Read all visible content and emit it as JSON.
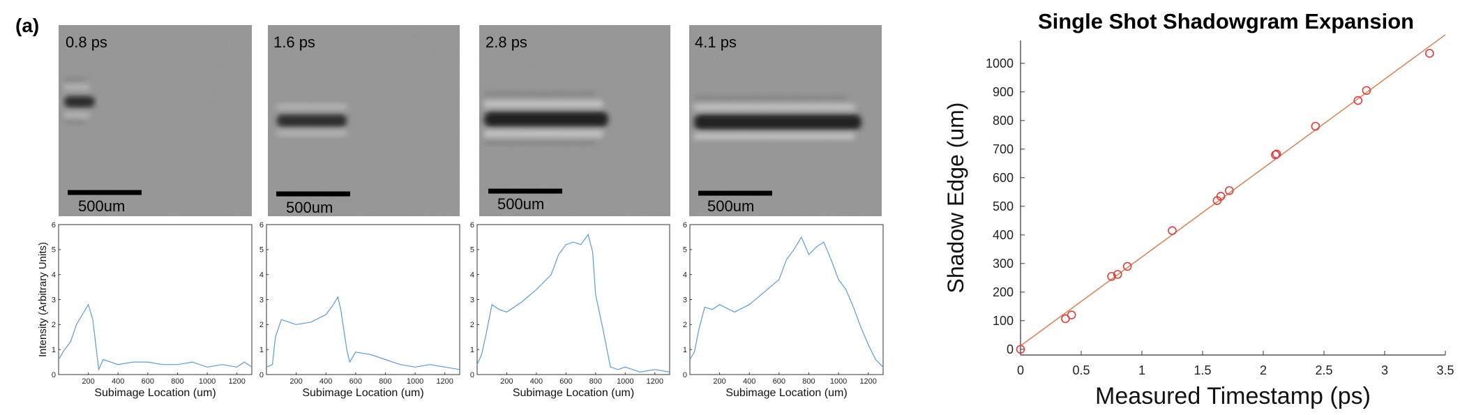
{
  "panel_label": "(a)",
  "shadowgram_images": [
    {
      "time_label": "0.8 ps",
      "scale_label": "500um"
    },
    {
      "time_label": "1.6 ps",
      "scale_label": "500um"
    },
    {
      "time_label": "2.8 ps",
      "scale_label": "500um"
    },
    {
      "time_label": "4.1 ps",
      "scale_label": "500um"
    }
  ],
  "chart_data": [
    {
      "type": "line",
      "title": "",
      "xlabel": "Subimage Location (um)",
      "ylabel": "Intensity (Arbitrary Units)",
      "xlim": [
        0,
        1300
      ],
      "ylim": [
        0,
        6
      ],
      "xticks": [
        200,
        400,
        600,
        800,
        1000,
        1200
      ],
      "yticks": [
        0,
        1,
        2,
        3,
        4,
        5,
        6
      ],
      "series": [
        {
          "x": [
            0,
            40,
            80,
            120,
            160,
            200,
            230,
            250,
            270,
            300,
            350,
            400,
            500,
            600,
            700,
            800,
            900,
            1000,
            1100,
            1200,
            1250,
            1300
          ],
          "values": [
            0.6,
            1.0,
            1.3,
            2.0,
            2.4,
            2.8,
            2.2,
            1.2,
            0.2,
            0.6,
            0.5,
            0.4,
            0.5,
            0.5,
            0.4,
            0.4,
            0.5,
            0.3,
            0.4,
            0.3,
            0.5,
            0.3
          ]
        }
      ],
      "color": "#5b9bd5"
    },
    {
      "type": "line",
      "title": "",
      "xlabel": "Subimage Location (um)",
      "ylabel": "",
      "xlim": [
        0,
        1300
      ],
      "ylim": [
        0,
        6
      ],
      "xticks": [
        200,
        400,
        600,
        800,
        1000,
        1200
      ],
      "yticks": [
        0,
        1,
        2,
        3,
        4,
        5,
        6
      ],
      "series": [
        {
          "x": [
            0,
            40,
            60,
            100,
            150,
            200,
            300,
            400,
            450,
            480,
            500,
            540,
            560,
            600,
            700,
            800,
            900,
            1000,
            1100,
            1200,
            1300
          ],
          "values": [
            0.3,
            0.4,
            1.5,
            2.2,
            2.1,
            2.0,
            2.1,
            2.4,
            2.8,
            3.1,
            2.6,
            1.0,
            0.5,
            0.9,
            0.8,
            0.6,
            0.4,
            0.3,
            0.4,
            0.3,
            0.2
          ]
        }
      ],
      "color": "#5b9bd5"
    },
    {
      "type": "line",
      "title": "",
      "xlabel": "Subimage Location (um)",
      "ylabel": "",
      "xlim": [
        0,
        1300
      ],
      "ylim": [
        0,
        6
      ],
      "xticks": [
        200,
        400,
        600,
        800,
        1000,
        1200
      ],
      "yticks": [
        0,
        1,
        2,
        3,
        4,
        5,
        6
      ],
      "series": [
        {
          "x": [
            0,
            30,
            60,
            100,
            150,
            200,
            300,
            400,
            500,
            550,
            600,
            650,
            700,
            750,
            780,
            800,
            850,
            900,
            950,
            1000,
            1100,
            1200,
            1300
          ],
          "values": [
            0.4,
            0.8,
            1.6,
            2.8,
            2.6,
            2.5,
            2.9,
            3.4,
            4.0,
            4.8,
            5.2,
            5.3,
            5.2,
            5.6,
            4.9,
            3.2,
            1.8,
            0.3,
            0.2,
            0.3,
            0.1,
            0.2,
            0.1
          ]
        }
      ],
      "color": "#5b9bd5"
    },
    {
      "type": "line",
      "title": "",
      "xlabel": "Subimage Location (um)",
      "ylabel": "",
      "xlim": [
        0,
        1300
      ],
      "ylim": [
        0,
        6
      ],
      "xticks": [
        200,
        400,
        600,
        800,
        1000,
        1200
      ],
      "yticks": [
        0,
        1,
        2,
        3,
        4,
        5,
        6
      ],
      "series": [
        {
          "x": [
            0,
            30,
            60,
            100,
            150,
            200,
            300,
            400,
            500,
            600,
            650,
            700,
            750,
            800,
            850,
            900,
            950,
            1000,
            1050,
            1100,
            1150,
            1200,
            1250,
            1300
          ],
          "values": [
            0.6,
            0.9,
            1.8,
            2.7,
            2.6,
            2.8,
            2.5,
            2.8,
            3.3,
            3.8,
            4.6,
            5.0,
            5.5,
            4.8,
            5.1,
            5.3,
            4.6,
            3.8,
            3.4,
            2.7,
            1.9,
            1.2,
            0.6,
            0.3
          ]
        }
      ],
      "color": "#5b9bd5"
    },
    {
      "type": "scatter",
      "title": "Single Shot Shadowgram Expansion",
      "xlabel": "Measured Timestamp (ps)",
      "ylabel": "Shadow Edge (um)",
      "xlim": [
        0,
        3.5
      ],
      "ylim": [
        -20,
        1080
      ],
      "xticks": [
        0,
        0.5,
        1,
        1.5,
        2,
        2.5,
        3,
        3.5
      ],
      "yticks": [
        0,
        100,
        200,
        300,
        400,
        500,
        600,
        700,
        800,
        900,
        1000
      ],
      "series": [
        {
          "x": [
            0,
            0.37,
            0.42,
            0.75,
            0.8,
            0.88,
            1.25,
            1.62,
            1.65,
            1.72,
            2.1,
            2.11,
            2.43,
            2.78,
            2.85,
            3.37
          ],
          "values": [
            0,
            107,
            120,
            255,
            262,
            290,
            415,
            520,
            535,
            555,
            680,
            683,
            780,
            870,
            905,
            1035
          ]
        }
      ],
      "fit_line": {
        "x": [
          0,
          3.5
        ],
        "values": [
          12,
          1100
        ]
      },
      "marker_color": "#e03b3b",
      "line_color": "#d9804f"
    }
  ]
}
